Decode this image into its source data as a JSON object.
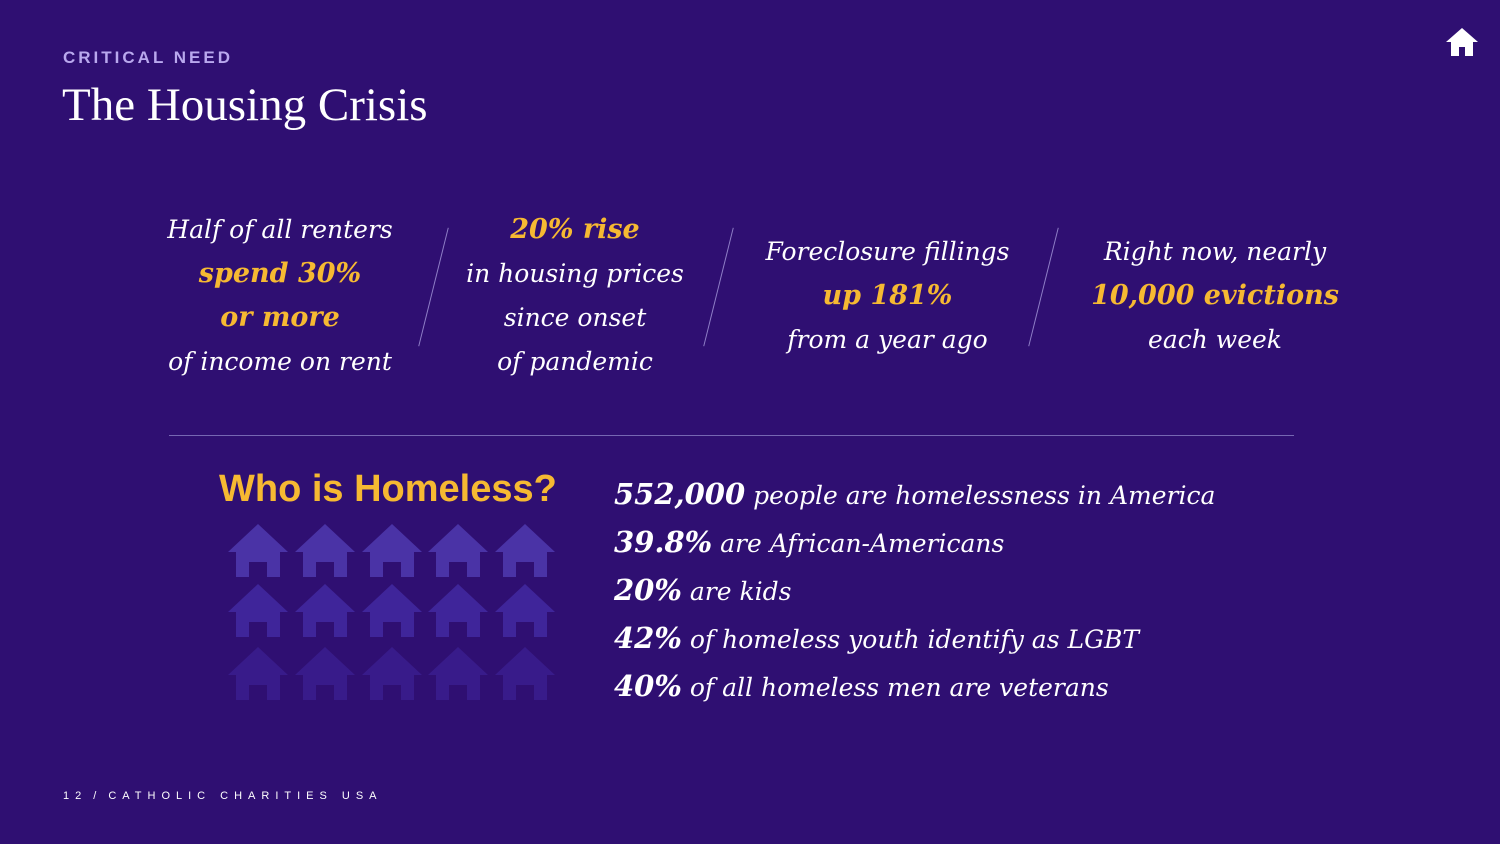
{
  "header": {
    "eyebrow": "CRITICAL NEED",
    "title": "The Housing Crisis",
    "home_icon": "home-icon"
  },
  "stats": [
    {
      "lines": [
        "Half of all renters"
      ],
      "highlight": [
        "spend 30%",
        "or more"
      ],
      "after": [
        "of income on rent"
      ]
    },
    {
      "highlight": [
        "20% rise"
      ],
      "after": [
        "in housing prices",
        "since onset",
        "of pandemic"
      ]
    },
    {
      "before": [
        "Foreclosure fillings"
      ],
      "highlight": [
        "up 181%"
      ],
      "after": [
        "from a year ago"
      ]
    },
    {
      "before": [
        "Right now, nearly"
      ],
      "highlight": [
        "10,000 evictions"
      ],
      "after": [
        "each week"
      ]
    }
  ],
  "who": {
    "title": "Who is Homeless?",
    "house_icon": "house-icon",
    "facts": [
      {
        "num": "552,000",
        "text": " people are homelessness in America"
      },
      {
        "num": "39.8%",
        "text": " are African-Americans"
      },
      {
        "num": "20%",
        "text": " are kids"
      },
      {
        "num": "42%",
        "text": " of homeless youth identify as LGBT"
      },
      {
        "num": "40%",
        "text": " of all homeless men are veterans"
      }
    ]
  },
  "footer": {
    "page": "12",
    "separator": "/",
    "org": "CATHOLIC CHARITIES USA"
  },
  "colors": {
    "background": "#2f0f72",
    "accent": "#f6b932",
    "eyebrow": "#b9a8ee"
  }
}
